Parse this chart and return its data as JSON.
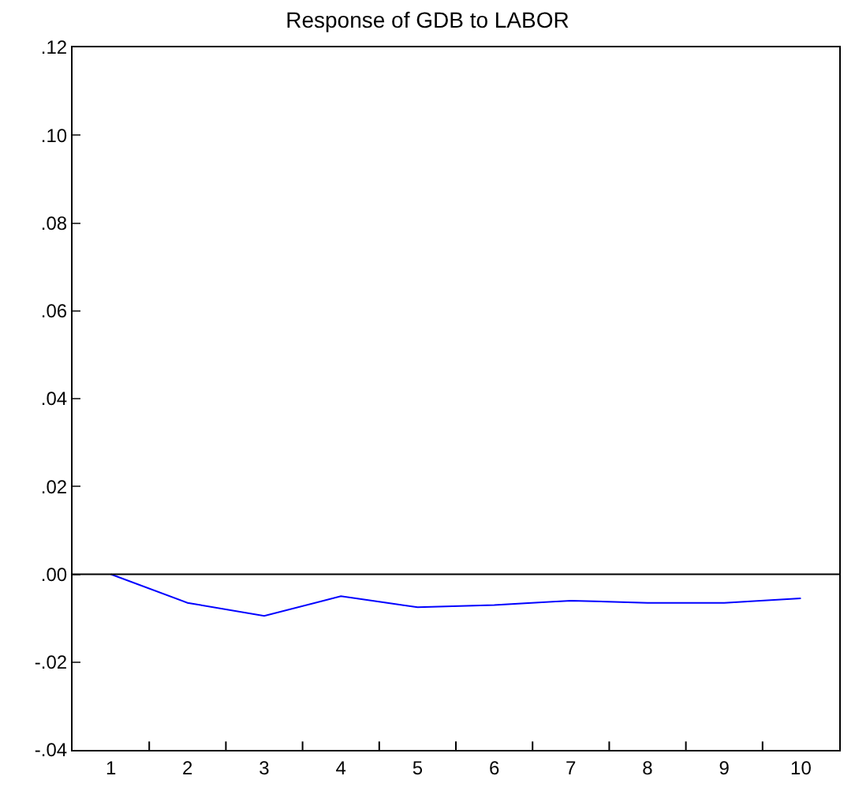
{
  "chart_data": {
    "type": "line",
    "title": "Response of GDB to LABOR",
    "categories": [
      "1",
      "2",
      "3",
      "4",
      "5",
      "6",
      "7",
      "8",
      "9",
      "10"
    ],
    "series": [
      {
        "color": "#0000ff",
        "values": [
          0,
          -0.0065,
          -0.0095,
          -0.005,
          -0.0075,
          -0.007,
          -0.006,
          -0.0065,
          -0.0065,
          -0.0055
        ]
      }
    ],
    "ylim": [
      -0.04,
      0.12
    ],
    "yticks": [
      {
        "value": -0.04,
        "label": "-.04"
      },
      {
        "value": -0.02,
        "label": "-.02"
      },
      {
        "value": 0,
        "label": ".00"
      },
      {
        "value": 0.02,
        "label": ".02"
      },
      {
        "value": 0.04,
        "label": ".04"
      },
      {
        "value": 0.06,
        "label": ".06"
      },
      {
        "value": 0.08,
        "label": ".08"
      },
      {
        "value": 0.1,
        "label": ".10"
      },
      {
        "value": 0.12,
        "label": ".12"
      }
    ],
    "ref_lines": [
      {
        "axis": "y",
        "value": 0,
        "color": "#000000"
      }
    ],
    "marker": "none",
    "line_style": "solid"
  }
}
